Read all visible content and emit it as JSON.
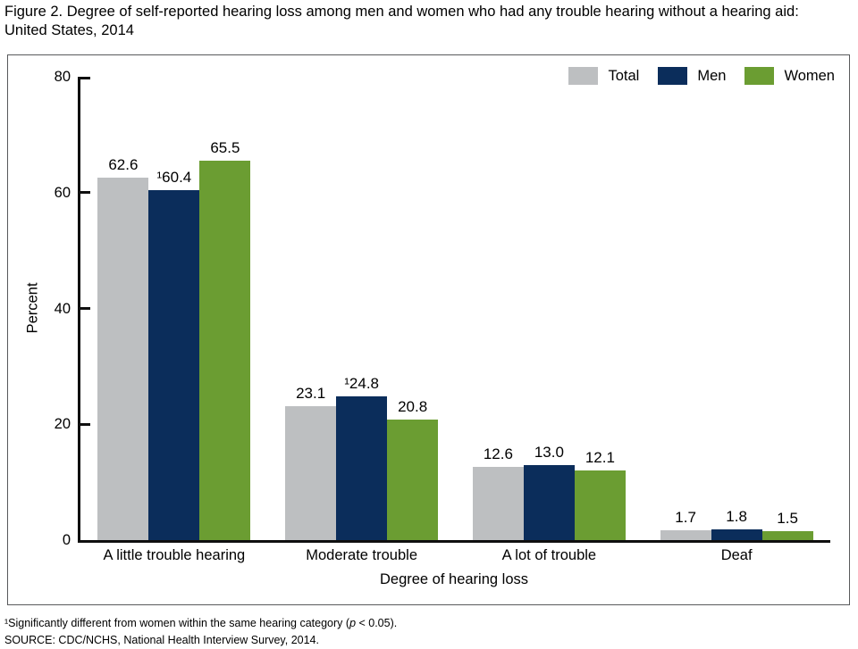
{
  "figure": {
    "title_line1": "Figure 2. Degree of self-reported hearing loss among men and women who had any trouble hearing without a hearing aid:",
    "title_line2": "United States, 2014"
  },
  "chart_data": {
    "type": "bar",
    "title": "Figure 2. Degree of self-reported hearing loss among men and women who had any trouble hearing without a hearing aid: United States, 2014",
    "categories": [
      "A little trouble hearing",
      "Moderate trouble",
      "A lot of trouble",
      "Deaf"
    ],
    "series": [
      {
        "name": "Total",
        "color": "#bdbfc1",
        "values": [
          62.6,
          23.1,
          12.6,
          1.7
        ],
        "bar_labels": [
          "62.6",
          "23.1",
          "12.6",
          "1.7"
        ]
      },
      {
        "name": "Men",
        "color": "#0b2d5b",
        "values": [
          60.4,
          24.8,
          13.0,
          1.8
        ],
        "bar_labels": [
          "¹60.4",
          "¹24.8",
          "13.0",
          "1.8"
        ]
      },
      {
        "name": "Women",
        "color": "#6b9d32",
        "values": [
          65.5,
          20.8,
          12.1,
          1.5
        ],
        "bar_labels": [
          "65.5",
          "20.8",
          "12.1",
          "1.5"
        ]
      }
    ],
    "xlabel": "Degree of hearing loss",
    "ylabel": "Percent",
    "ylim": [
      0,
      80
    ],
    "yticks": [
      0,
      20,
      40,
      60,
      80
    ],
    "legend_position": "top-right",
    "grid": false
  },
  "footnotes": {
    "note1_prefix": "¹Significantly different from women within the same hearing category (",
    "note1_p": "p",
    "note1_suffix": " < 0.05).",
    "source": "SOURCE: CDC/NCHS, National Health Interview Survey, 2014."
  }
}
